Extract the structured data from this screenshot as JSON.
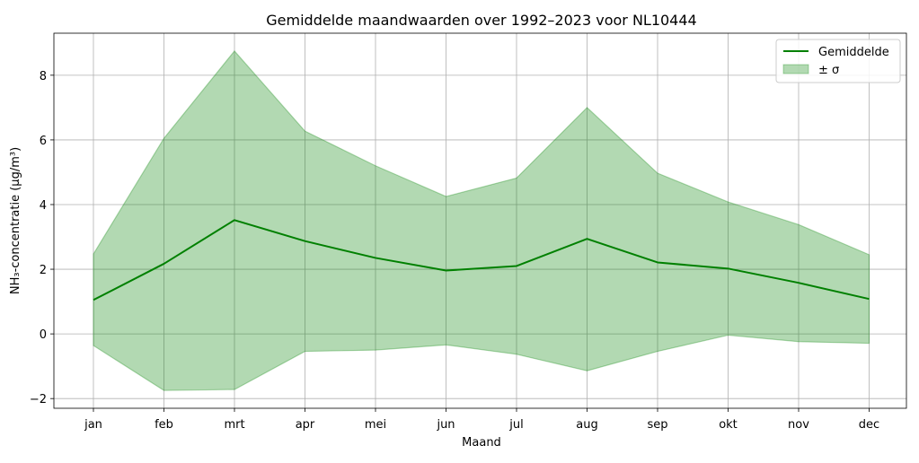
{
  "chart_data": {
    "type": "line",
    "title": "Gemiddelde maandwaarden over 1992–2023 voor NL10444",
    "xlabel": "Maand",
    "ylabel": "NH₃-concentratie (µg/m³)",
    "categories": [
      "jan",
      "feb",
      "mrt",
      "apr",
      "mei",
      "jun",
      "jul",
      "aug",
      "sep",
      "okt",
      "nov",
      "dec"
    ],
    "series": [
      {
        "name": "Gemiddelde",
        "color": "#008000",
        "values": [
          1.05,
          2.17,
          3.52,
          2.87,
          2.35,
          1.96,
          2.1,
          2.94,
          2.21,
          2.02,
          1.58,
          1.08
        ]
      }
    ],
    "band": {
      "name": "± σ",
      "color": "#008000",
      "upper": [
        2.47,
        6.05,
        8.75,
        6.27,
        5.2,
        4.25,
        4.82,
        7.0,
        4.97,
        4.08,
        3.38,
        2.45
      ],
      "lower": [
        -0.36,
        -1.75,
        -1.72,
        -0.54,
        -0.5,
        -0.34,
        -0.63,
        -1.14,
        -0.54,
        -0.04,
        -0.24,
        -0.29
      ]
    },
    "yticks": [
      -2,
      0,
      2,
      4,
      6,
      8
    ],
    "ytick_labels": [
      "−2",
      "0",
      "2",
      "4",
      "6",
      "8"
    ],
    "ylim": [
      -2.3,
      9.3
    ],
    "grid": true,
    "legend_position": "top-right"
  }
}
